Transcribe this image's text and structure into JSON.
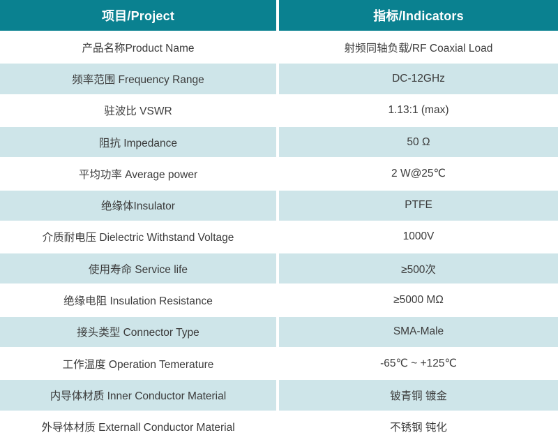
{
  "table": {
    "header": {
      "project": "项目/Project",
      "indicators": "指标/Indicators"
    },
    "rows": [
      {
        "project": "产品名称Product Name",
        "indicator": "射频同轴负载/RF Coaxial Load"
      },
      {
        "project": "频率范围 Frequency Range",
        "indicator": "DC-12GHz"
      },
      {
        "project": "驻波比 VSWR",
        "indicator": "1.13:1 (max)"
      },
      {
        "project": "阻抗 Impedance",
        "indicator": "50 Ω"
      },
      {
        "project": "平均功率 Average power",
        "indicator": "2 W@25℃"
      },
      {
        "project": "绝缘体Insulator",
        "indicator": "PTFE"
      },
      {
        "project": "介质耐电压 Dielectric Withstand Voltage",
        "indicator": "1000V"
      },
      {
        "project": "使用寿命 Service life",
        "indicator": "≥500次"
      },
      {
        "project": "绝缘电阻 Insulation Resistance",
        "indicator": "≥5000 MΩ"
      },
      {
        "project": "接头类型 Connector Type",
        "indicator": "SMA-Male"
      },
      {
        "project": "工作温度 Operation Temerature",
        "indicator": "-65℃ ~ +125℃"
      },
      {
        "project": "内导体材质 Inner Conductor Material",
        "indicator": "铍青铜 镀金"
      },
      {
        "project": "外导体材质 Externall Conductor Material",
        "indicator": "不锈钢 钝化"
      }
    ]
  },
  "colors": {
    "header_bg": "#0a8190",
    "header_text": "#ffffff",
    "row_tint": "#cee5e9",
    "row_white": "#ffffff",
    "body_text": "#3b3b3b",
    "divider": "#ffffff"
  }
}
